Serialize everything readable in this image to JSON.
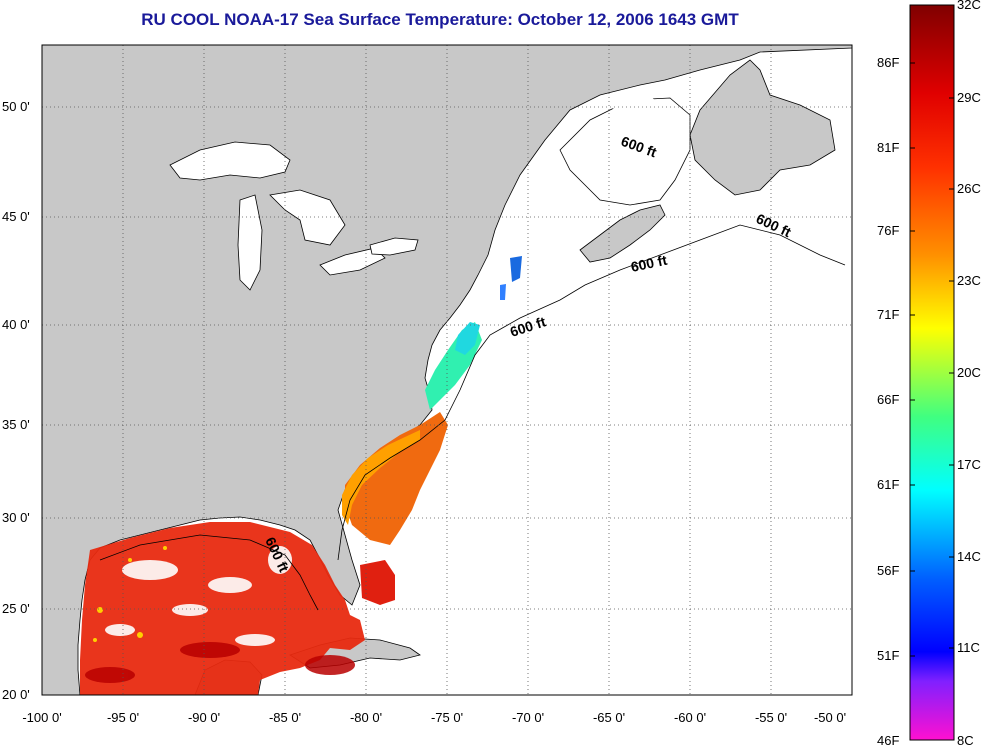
{
  "title": "RU COOL  NOAA-17  Sea Surface Temperature:  October 12, 2006 1643 GMT",
  "map": {
    "lon_labels": [
      "-100 0'",
      "-95 0'",
      "-90 0'",
      "-85 0'",
      "-80 0'",
      "-75 0'",
      "-70 0'",
      "-65 0'",
      "-60 0'",
      "-55 0'",
      "-50 0'"
    ],
    "lat_labels": [
      "50 0'",
      "45 0'",
      "40 0'",
      "35 0'",
      "30 0'",
      "25 0'",
      "20 0'"
    ],
    "contour_labels": [
      "600 ft",
      "600 ft",
      "600 ft",
      "600 ft",
      "600 ft"
    ],
    "colors": {
      "land": "#c8c8c8",
      "water_nodata": "#ffffff",
      "coast": "#000000",
      "grid": "#555555"
    }
  },
  "colorbar": {
    "fahrenheit_labels": [
      "86F",
      "81F",
      "76F",
      "71F",
      "66F",
      "61F",
      "56F",
      "51F",
      "46F"
    ],
    "celsius_labels": [
      "32C",
      "29C",
      "26C",
      "23C",
      "20C",
      "17C",
      "14C",
      "11C",
      "8C"
    ],
    "colors": [
      "#800000",
      "#ff0000",
      "#ff8c00",
      "#ffff00",
      "#00ff80",
      "#00ffff",
      "#0050ff",
      "#0000ff",
      "#ff00ff"
    ]
  }
}
